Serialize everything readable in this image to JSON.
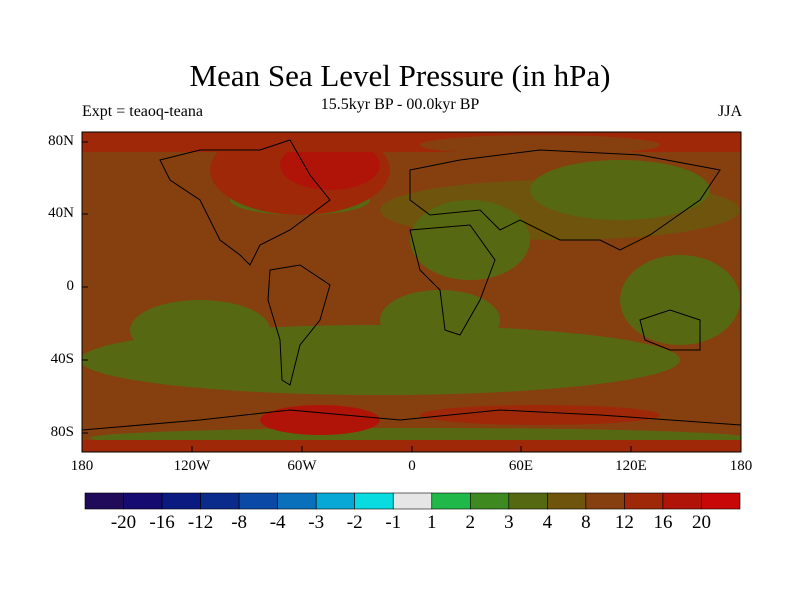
{
  "title": "Mean Sea Level Pressure (in hPa)",
  "subtitle": "15.5kyr BP - 00.0kyr BP",
  "left_label": "Expt = teaoq-teana",
  "right_label": "JJA",
  "chart_data": {
    "type": "heatmap",
    "title": "Mean Sea Level Pressure (in hPa)",
    "y_ticks": [
      "80N",
      "40N",
      "0",
      "40S",
      "80S"
    ],
    "x_ticks": [
      "180",
      "120W",
      "60W",
      "0",
      "60E",
      "120E",
      "180"
    ],
    "colorbar": {
      "labels": [
        "-20",
        "-16",
        "-12",
        "-8",
        "-4",
        "-3",
        "-2",
        "-1",
        "1",
        "2",
        "3",
        "4",
        "8",
        "12",
        "16",
        "20"
      ],
      "colors": [
        "#200a5a",
        "#140a70",
        "#0a1a80",
        "#0a2a8c",
        "#0a4aa6",
        "#0a70bc",
        "#08a8d6",
        "#08dce0",
        "#e6e6e6",
        "#20b848",
        "#3f8a20",
        "#566912",
        "#6e540c",
        "#864010",
        "#9f2808",
        "#b01408",
        "#c80808"
      ]
    }
  }
}
